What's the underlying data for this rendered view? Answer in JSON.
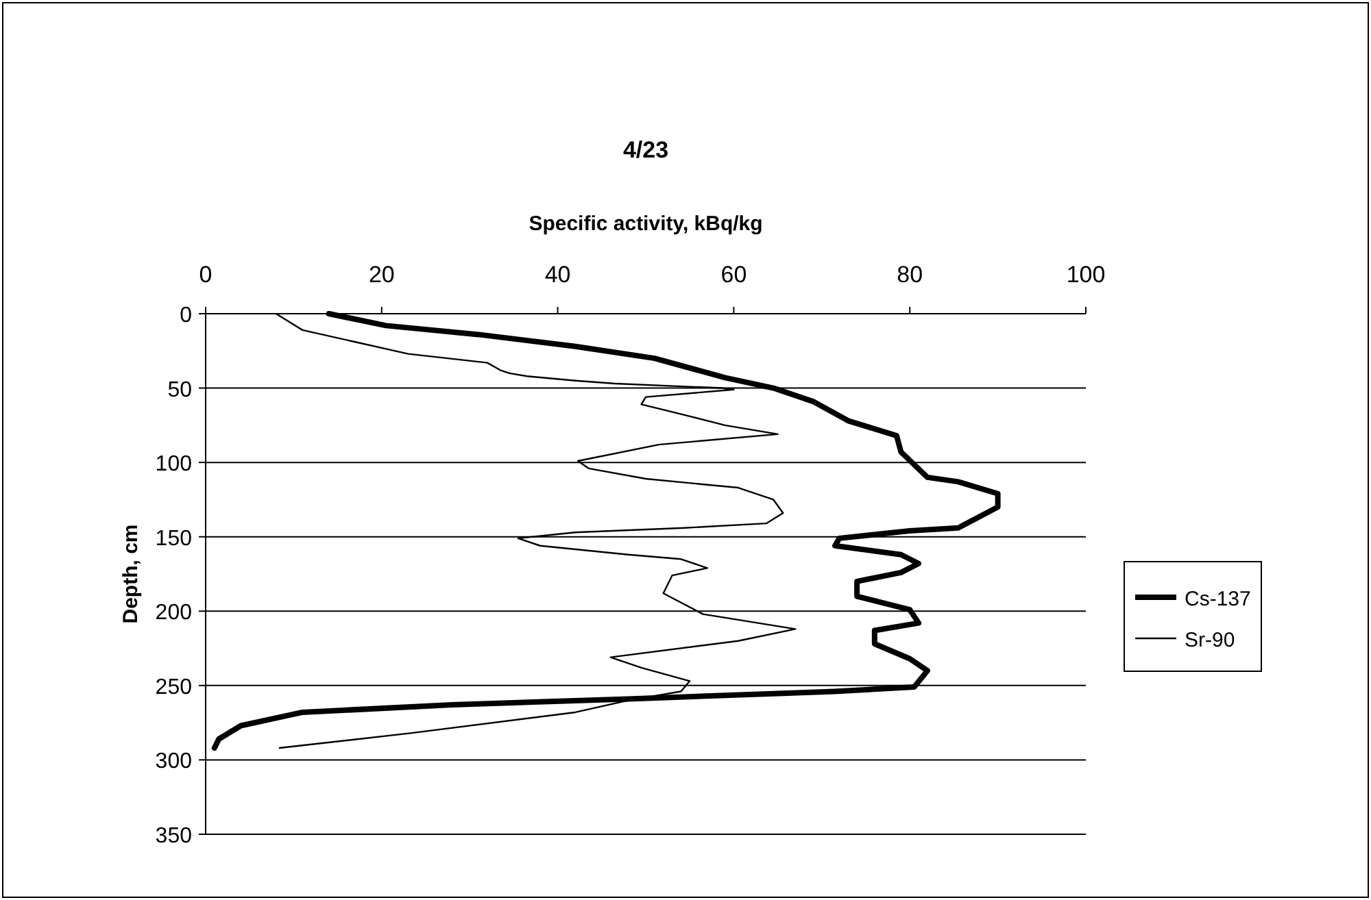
{
  "chart_data": {
    "type": "line",
    "title": "4/23",
    "xlabel": "Specific activity, kBq/kg",
    "ylabel": "Depth, cm",
    "xlim": [
      0,
      100
    ],
    "xticks": [
      0,
      20,
      40,
      60,
      80,
      100
    ],
    "ylim": [
      350,
      0
    ],
    "yticks": [
      0,
      50,
      100,
      150,
      200,
      250,
      300,
      350
    ],
    "grid": "y",
    "legend": "right",
    "marker": "none",
    "line_style": "solid",
    "series": [
      {
        "name": "Cs-137",
        "color": "#000000",
        "x": [
          14,
          20.5,
          31,
          42,
          51,
          59,
          64.5,
          69,
          73,
          78.5,
          79,
          82,
          85.5,
          90,
          90,
          85.5,
          80,
          72,
          71.5,
          79,
          81,
          79,
          74,
          74,
          80,
          81,
          76,
          76,
          80,
          82,
          80.5,
          71.5,
          48,
          28,
          11,
          4,
          1.5,
          1
        ],
        "values": [
          0,
          8,
          14,
          22,
          30,
          43,
          50,
          59,
          72,
          82,
          93,
          110,
          113,
          121,
          130,
          144,
          146,
          151,
          156,
          162,
          168,
          174,
          180,
          190,
          199,
          208,
          213,
          222,
          232,
          240,
          251,
          254,
          259,
          263,
          268,
          277,
          286,
          292
        ]
      },
      {
        "name": "Sr-90",
        "color": "#000000",
        "x": [
          8,
          11,
          17,
          23,
          32,
          33.5,
          34.5,
          36.5,
          42,
          46.5,
          54.5,
          58.7,
          60,
          50,
          49.5,
          53,
          59,
          65,
          51.5,
          42.3,
          43.5,
          50,
          60.5,
          64.5,
          65.6,
          63.7,
          54.4,
          42,
          35.5,
          38,
          48,
          54,
          57,
          53,
          52,
          56.5,
          67,
          60.5,
          46,
          49.5,
          55,
          54,
          48,
          42,
          23.3,
          8.4
        ],
        "values": [
          0,
          11,
          19,
          27,
          33,
          38,
          40,
          42,
          45,
          47,
          49,
          50,
          51,
          56,
          61,
          66,
          75,
          81,
          88,
          99,
          104,
          111,
          117,
          125,
          134,
          141,
          144,
          147,
          151,
          156,
          162,
          165,
          171,
          176,
          188,
          202,
          212,
          220,
          231,
          238,
          247,
          254,
          260,
          268,
          282,
          292
        ]
      }
    ]
  }
}
